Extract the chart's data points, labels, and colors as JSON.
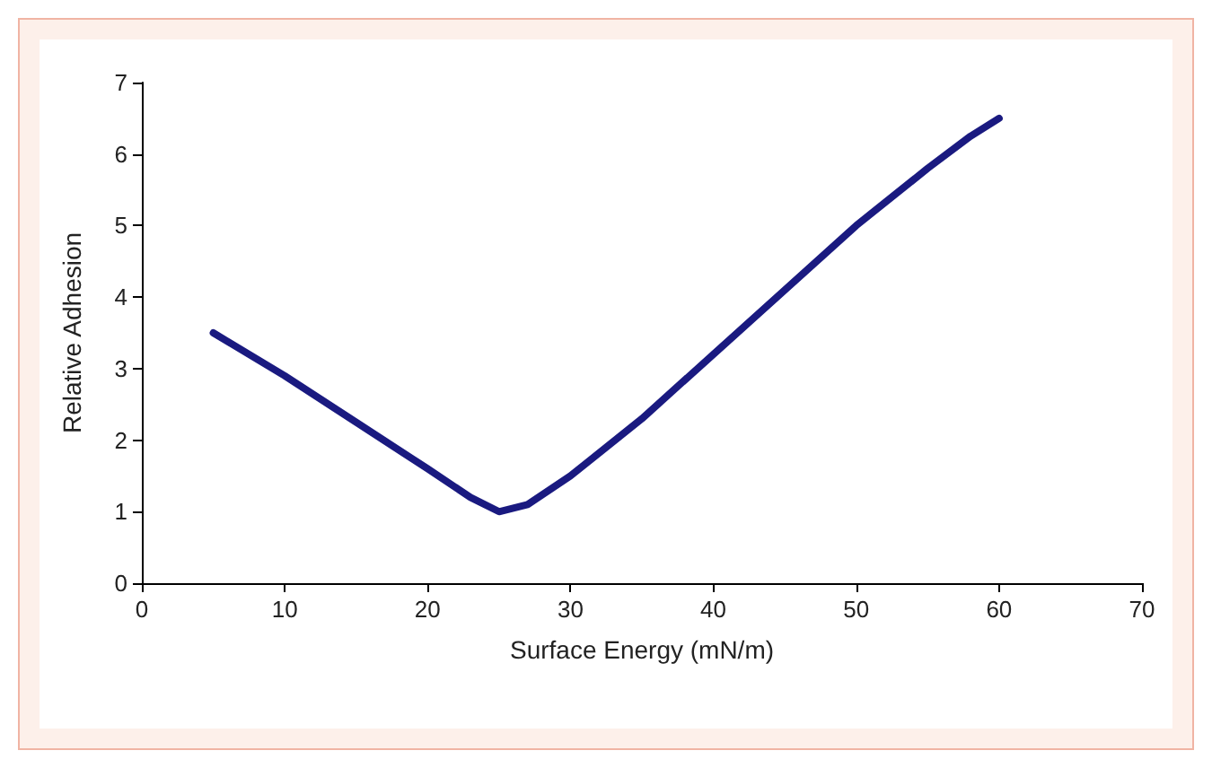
{
  "chart_data": {
    "type": "line",
    "xlabel": "Surface Energy (mN/m)",
    "ylabel": "Relative Adhesion",
    "x": [
      5,
      10,
      15,
      20,
      23,
      25,
      27,
      30,
      35,
      40,
      45,
      50,
      55,
      58,
      60
    ],
    "series": [
      {
        "color": "#1a1a80",
        "values": [
          3.5,
          2.9,
          2.25,
          1.6,
          1.2,
          1.0,
          1.1,
          1.5,
          2.3,
          3.2,
          4.1,
          5.0,
          5.8,
          6.25,
          6.5
        ]
      }
    ],
    "xlim": [
      0,
      70
    ],
    "xticks": [
      0,
      10,
      20,
      30,
      40,
      50,
      60,
      70
    ],
    "ylim": [
      0,
      7
    ],
    "yticks": [
      0,
      1,
      2,
      3,
      4,
      5,
      6,
      7
    ],
    "grid": false,
    "marker": "none",
    "line_style": "solid"
  }
}
